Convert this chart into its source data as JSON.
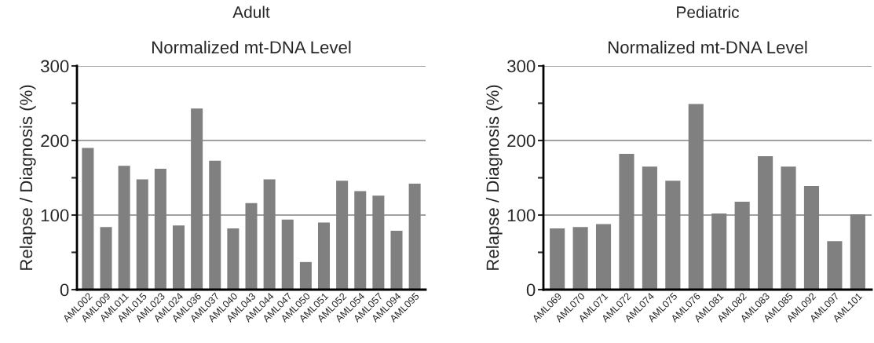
{
  "chart_data": [
    {
      "type": "bar",
      "title": "Adult",
      "subtitle": "Normalized mt-DNA Level",
      "ylabel": "Relapse / Diagnosis (%)",
      "categories": [
        "AML002",
        "AML009",
        "AML011",
        "AML015",
        "AML023",
        "AML024",
        "AML036",
        "AML037",
        "AML040",
        "AML043",
        "AML044",
        "AML047",
        "AML050",
        "AML051",
        "AML052",
        "AML054",
        "AML057",
        "AML094",
        "AML095"
      ],
      "values": [
        190,
        84,
        166,
        148,
        162,
        86,
        243,
        173,
        82,
        116,
        148,
        94,
        37,
        90,
        146,
        132,
        126,
        79,
        142
      ],
      "color": "#808080",
      "ylim": [
        0,
        300
      ],
      "yticks": [
        0,
        {
          "value": 50,
          "label": null
        },
        100,
        {
          "value": 150,
          "label": null
        },
        200,
        {
          "value": 250,
          "label": null
        },
        300
      ],
      "grid": "y"
    },
    {
      "type": "bar",
      "title": "Pediatric",
      "subtitle": "Normalized mt-DNA Level",
      "ylabel": "Relapse / Diagnosis (%)",
      "categories": [
        "AML069",
        "AML070",
        "AML071",
        "AML072",
        "AML074",
        "AML075",
        "AML076",
        "AML081",
        "AML082",
        "AML083",
        "AML085",
        "AML092",
        "AML097",
        "AML101"
      ],
      "values": [
        82,
        84,
        88,
        182,
        165,
        146,
        249,
        102,
        118,
        179,
        165,
        139,
        65,
        101
      ],
      "color": "#808080",
      "ylim": [
        0,
        300
      ],
      "yticks": [
        0,
        {
          "value": 50,
          "label": null
        },
        100,
        {
          "value": 150,
          "label": null
        },
        200,
        {
          "value": 250,
          "label": null
        },
        300
      ],
      "grid": "y"
    }
  ]
}
